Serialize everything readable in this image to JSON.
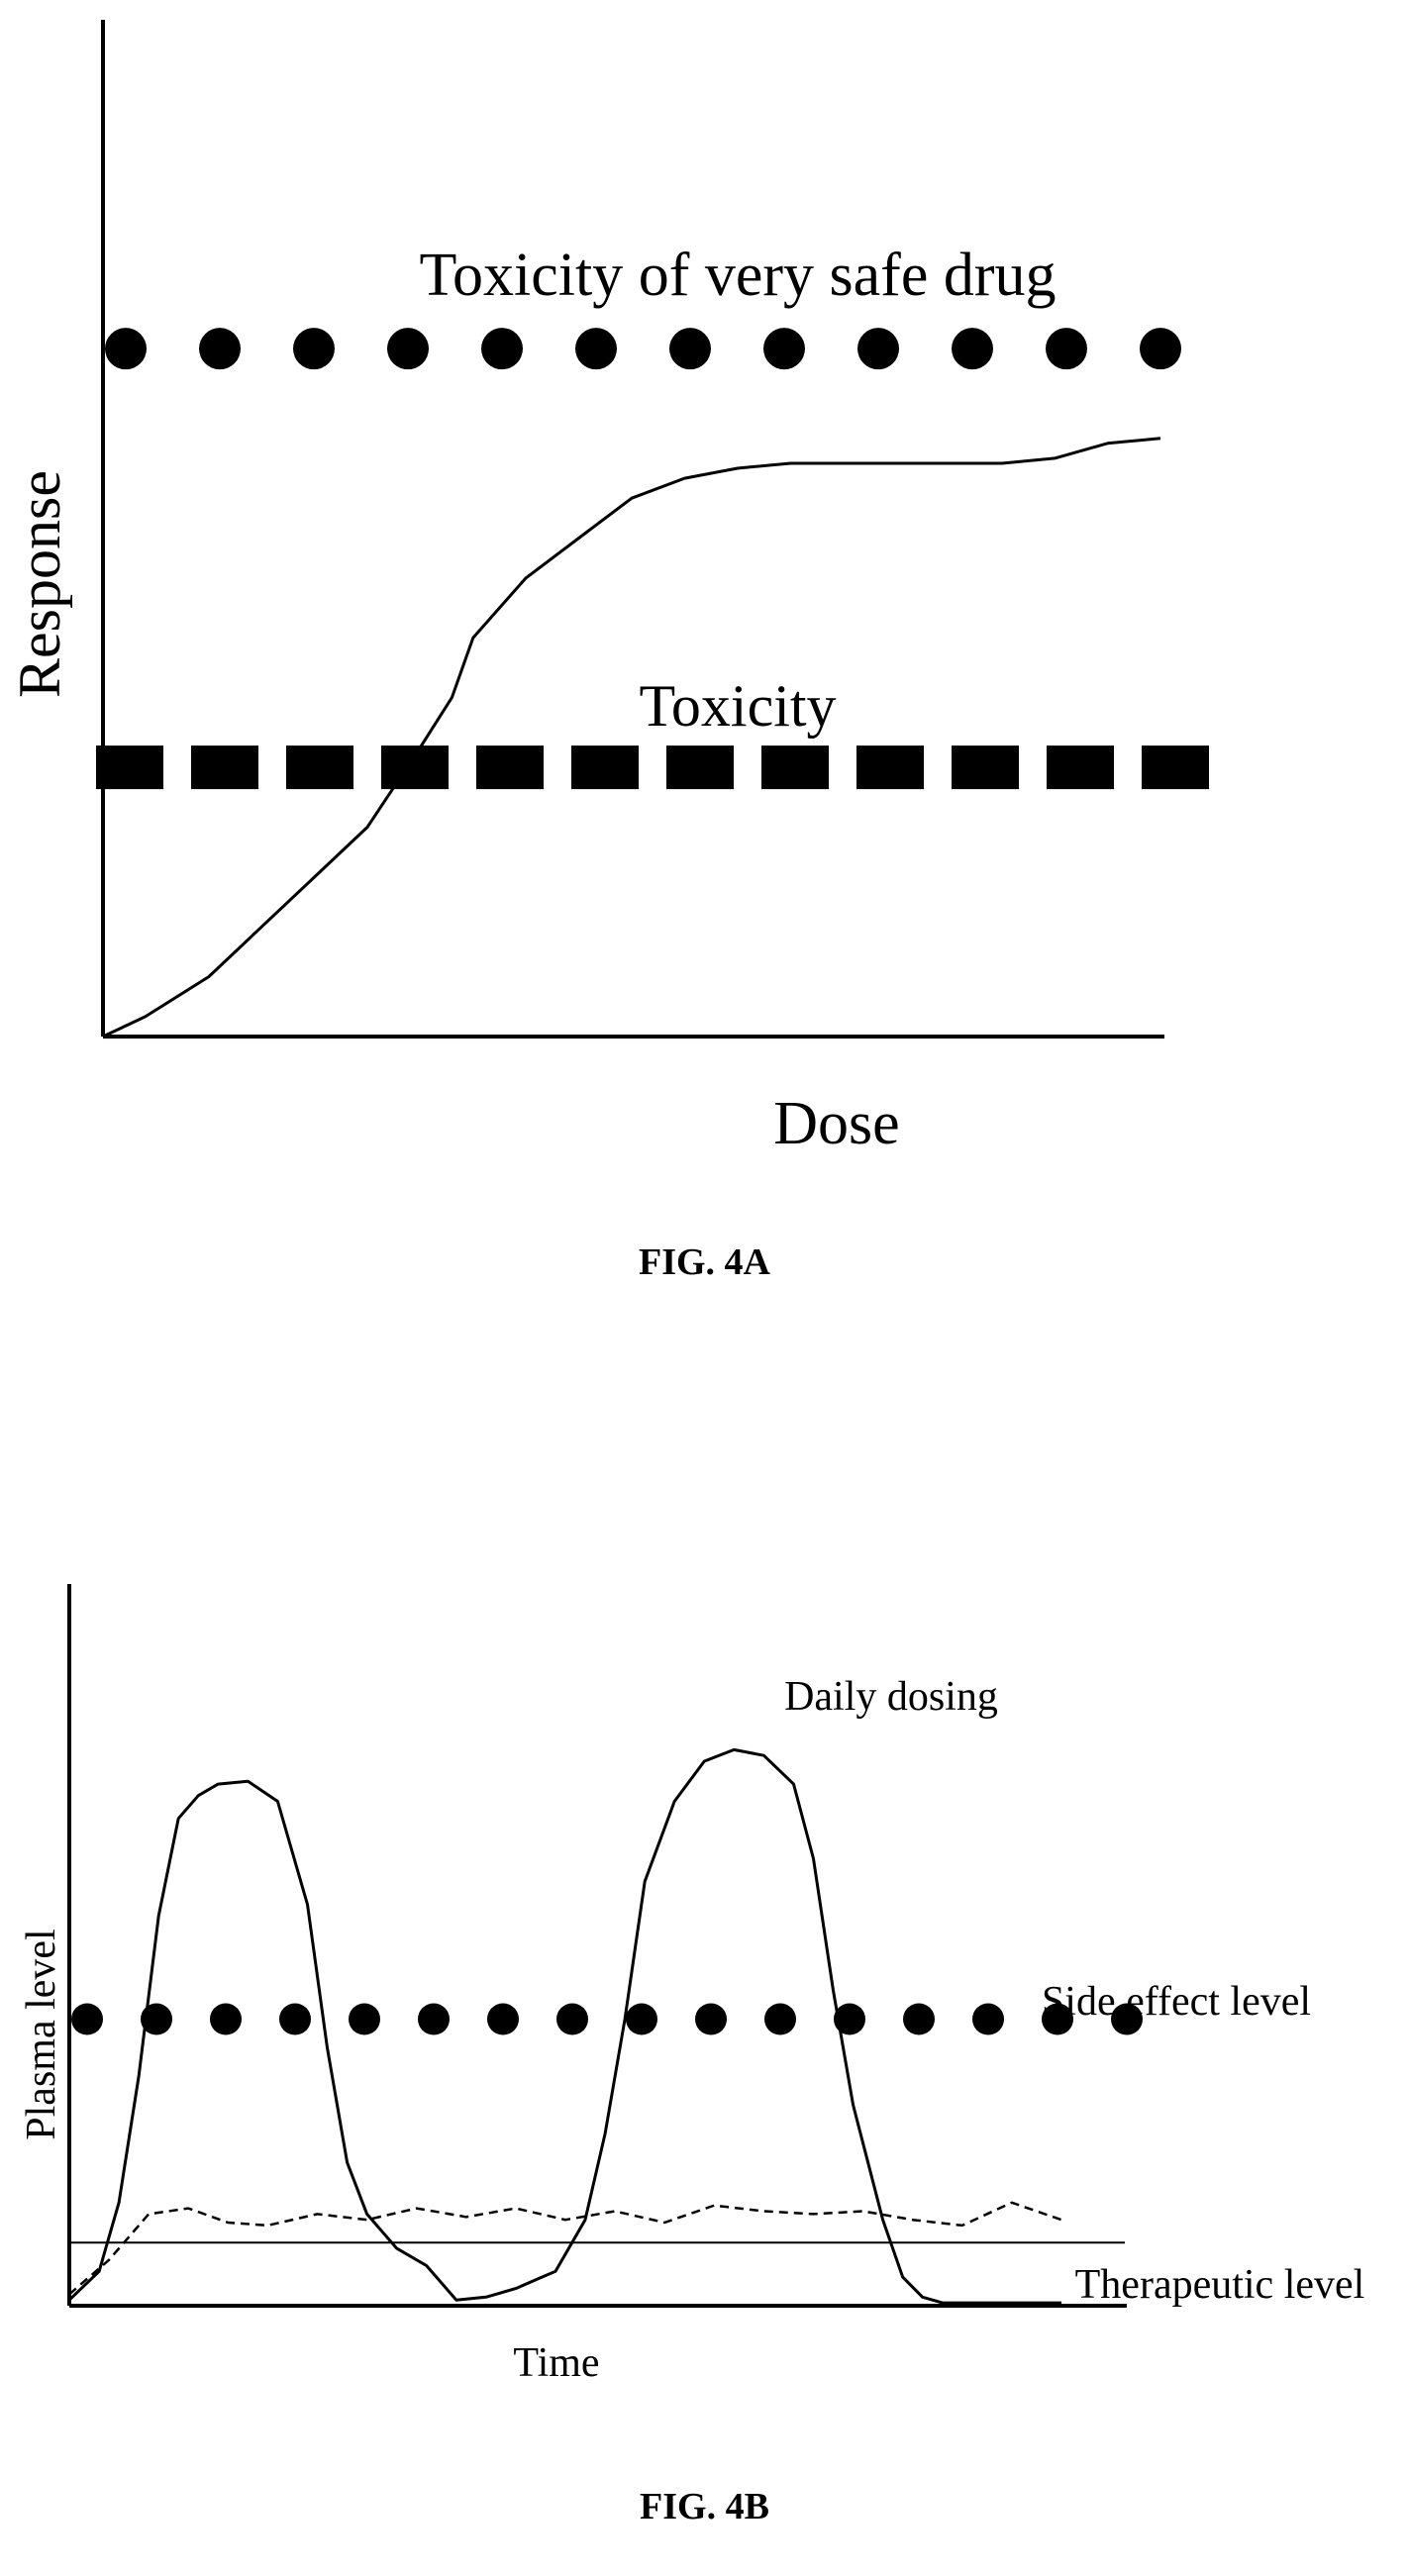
{
  "figures": [
    {
      "id": "fig4a",
      "caption": "FIG. 4A",
      "chart_data": {
        "type": "line",
        "xlabel": "Dose",
        "ylabel": "Response",
        "xlim": [
          0,
          100
        ],
        "ylim": [
          0,
          100
        ],
        "grid": false,
        "series": [
          {
            "name": "",
            "x": [
              0,
              4,
              10,
              15,
              20,
              25,
              30,
              33,
              35,
              40,
              45,
              50,
              55,
              60,
              65,
              70,
              75,
              80,
              85,
              90,
              95,
              100
            ],
            "y": [
              0,
              2,
              6,
              11,
              16,
              21,
              29,
              34,
              40,
              46,
              50,
              54,
              56,
              57,
              57.5,
              57.5,
              57.5,
              57.5,
              57.5,
              58,
              59.5,
              60
            ]
          }
        ],
        "reference_lines": [
          {
            "label": "Toxicity of very safe drug",
            "y": 69,
            "style": "large-dots"
          },
          {
            "label": "Toxicity",
            "y": 27,
            "style": "large-squares"
          }
        ]
      }
    },
    {
      "id": "fig4b",
      "caption": "FIG. 4B",
      "chart_data": {
        "type": "line",
        "xlabel": "Time",
        "ylabel": "Plasma level",
        "xlim": [
          0,
          100
        ],
        "ylim": [
          0,
          100
        ],
        "grid": false,
        "series": [
          {
            "name": "Daily dosing",
            "style": "solid",
            "x": [
              0,
              3,
              5,
              7,
              9,
              11,
              13,
              15,
              18,
              21,
              24,
              26,
              28,
              30,
              33,
              36,
              39,
              42,
              45,
              47,
              49,
              52,
              54,
              56,
              58,
              61,
              64,
              67,
              70,
              73,
              75,
              77,
              79,
              82,
              84,
              86,
              88,
              90,
              91,
              93,
              95,
              100
            ],
            "y": [
              1,
              6,
              18,
              40,
              68,
              85,
              89,
              91,
              91.5,
              88,
              70,
              45,
              25,
              16,
              10,
              7,
              1,
              1.5,
              3,
              4.5,
              6,
              15,
              30,
              50,
              74,
              88,
              95,
              97,
              96,
              91,
              78,
              55,
              35,
              15,
              5,
              1.5,
              0.5,
              0.5,
              0.5,
              0.5,
              0.5,
              0.5
            ]
          },
          {
            "name": "",
            "style": "dashed",
            "x": [
              0,
              4,
              8,
              12,
              16,
              20,
              25,
              30,
              35,
              40,
              45,
              50,
              55,
              60,
              65,
              70,
              75,
              80,
              85,
              90,
              95,
              100
            ],
            "y": [
              2,
              8,
              16,
              17,
              14.5,
              14,
              16,
              15,
              17,
              15.5,
              17,
              15,
              16.5,
              14.5,
              17.5,
              16.5,
              16,
              16.5,
              15,
              14,
              18,
              15
            ]
          }
        ],
        "reference_lines": [
          {
            "label": "Side effect level",
            "y": 50,
            "style": "dots"
          },
          {
            "label": "Therapeutic level",
            "y": 11,
            "style": "thin-solid"
          }
        ]
      }
    }
  ]
}
